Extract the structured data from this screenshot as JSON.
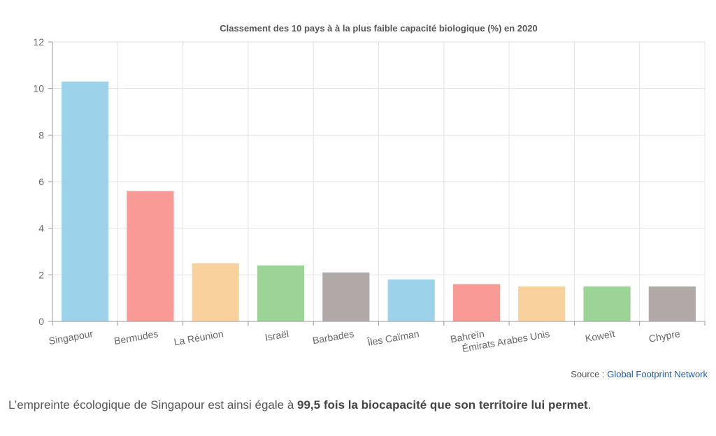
{
  "chart_data": {
    "type": "bar",
    "title": "Classement des 10 pays à à la plus faible capacité biologique (%) en 2020",
    "categories": [
      "Singapour",
      "Bermudes",
      "La Réunion",
      "Israël",
      "Barbades",
      "Îles Caïman",
      "Bahreïn",
      "Émirats Arabes Unis",
      "Koweït",
      "Chypre"
    ],
    "values": [
      10.3,
      5.6,
      2.5,
      2.4,
      2.1,
      1.8,
      1.6,
      1.5,
      1.5,
      1.5
    ],
    "colors": [
      "#9dd3ea",
      "#f99a96",
      "#f8d19c",
      "#9cd497",
      "#b0a9a8",
      "#9dd3ea",
      "#f99a96",
      "#f8d19c",
      "#9cd497",
      "#b0a9a8"
    ],
    "ylim": [
      0,
      12
    ],
    "yticks": [
      0,
      2,
      4,
      6,
      8,
      10,
      12
    ],
    "grid": true
  },
  "source": {
    "prefix": "Source : ",
    "link_text": "Global Footprint Network"
  },
  "caption": {
    "before": "L’empreinte écologique de Singapour est ainsi égale à ",
    "bold": "99,5 fois la biocapacité que son territoire lui permet",
    "after": "."
  }
}
